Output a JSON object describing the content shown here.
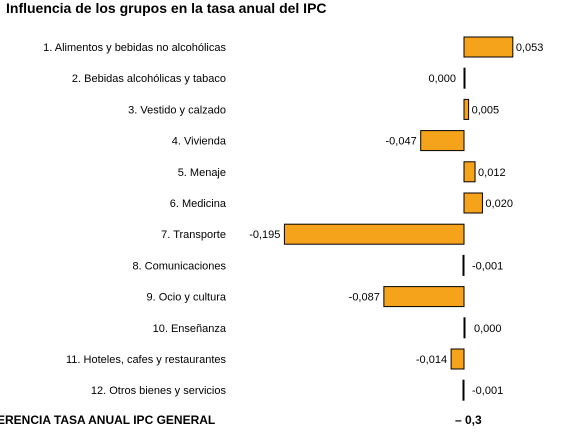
{
  "chart_data": {
    "type": "bar",
    "orientation": "horizontal",
    "title": "Influencia de los grupos en la tasa anual del IPC",
    "categories": [
      "1. Alimentos y bebidas no alcohólicas",
      "2. Bebidas alcohólicas y tabaco",
      "3. Vestido y calzado",
      "4. Vivienda",
      "5. Menaje",
      "6. Medicina",
      "7. Transporte",
      "8. Comunicaciones",
      "9. Ocio y cultura",
      "10. Enseñanza",
      "11. Hoteles, cafes y restaurantes",
      "12. Otros bienes y servicios"
    ],
    "values": [
      0.053,
      0.0,
      0.005,
      -0.047,
      0.012,
      0.02,
      -0.195,
      -0.001,
      -0.087,
      0.0,
      -0.014,
      -0.001
    ],
    "value_labels": [
      "0,053",
      "0,000",
      "0,005",
      "-0,047",
      "0,012",
      "0,020",
      "-0,195",
      "-0,001",
      "-0,087",
      "0,000",
      "-0,014",
      "-0,001"
    ],
    "bar_color": "#f5a31a",
    "bar_edge_color": "#000000",
    "xlim": [
      -0.2,
      0.053
    ],
    "grid": false,
    "legend": "none"
  },
  "footer": {
    "label": "ERENCIA TASA ANUAL IPC GENERAL",
    "value": "– 0,3"
  }
}
